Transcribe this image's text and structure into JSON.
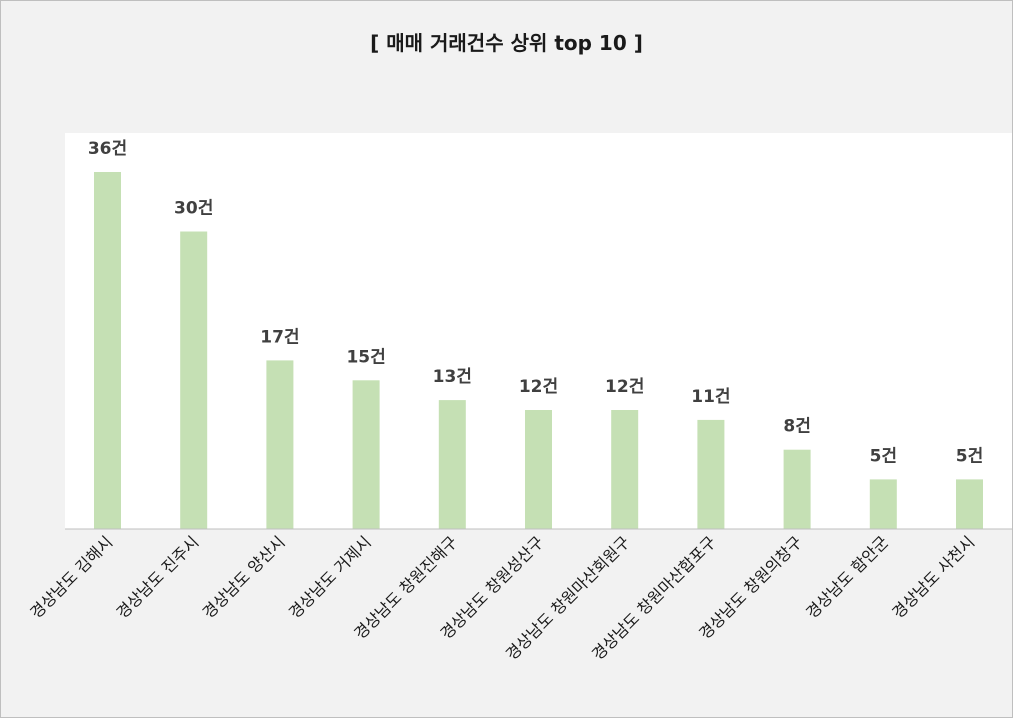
{
  "chart_data": {
    "type": "bar",
    "title": "[ 매매 거래건수 상위 top 10 ]",
    "value_suffix": "건",
    "categories": [
      "경상남도 김해시",
      "경상남도 진주시",
      "경상남도 양산시",
      "경상남도 거제시",
      "경상남도 창원진해구",
      "경상남도 창원성산구",
      "경상남도 창원마산회원구",
      "경상남도 창원마산합포구",
      "경상남도 창원의창구",
      "경상남도 함안군",
      "경상남도 사천시"
    ],
    "values": [
      36,
      30,
      17,
      15,
      13,
      12,
      12,
      11,
      8,
      5,
      5
    ],
    "ylim": [
      0,
      40
    ],
    "grid": false,
    "legend": "none",
    "colors": {
      "bar": "#c5e0b4",
      "plot_background": "#ffffff",
      "chart_background": "#f2f2f2",
      "axis": "#bfbfbf"
    }
  }
}
